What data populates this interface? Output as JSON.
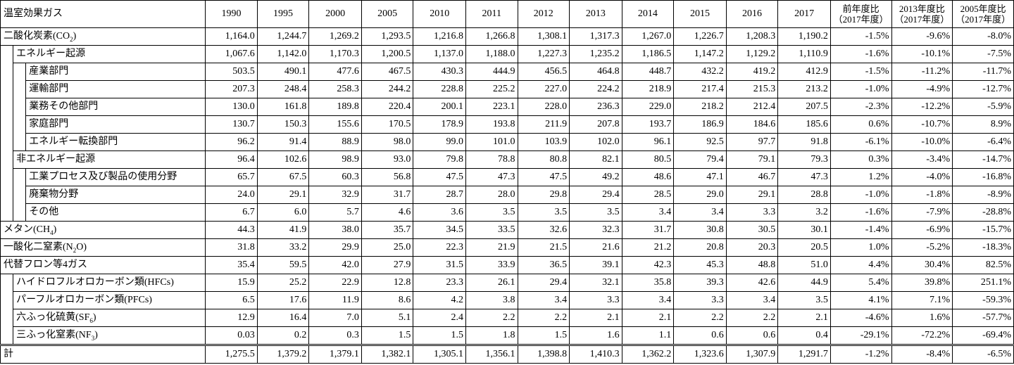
{
  "header": {
    "gas_label": "温室効果ガス",
    "years": [
      "1990",
      "1995",
      "2000",
      "2005",
      "2010",
      "2011",
      "2012",
      "2013",
      "2014",
      "2015",
      "2016",
      "2017"
    ],
    "ratio_cols": [
      {
        "line1": "前年度比",
        "line2": "（2017年度）"
      },
      {
        "line1": "2013年度比",
        "line2": "（2017年度）"
      },
      {
        "line1": "2005年度比",
        "line2": "（2017年度）"
      }
    ]
  },
  "rows": [
    {
      "label": "二酸化炭素(CO",
      "sub": "2",
      "tail": ")",
      "level": 0,
      "values": [
        "1,164.0",
        "1,244.7",
        "1,269.2",
        "1,293.5",
        "1,216.8",
        "1,266.8",
        "1,308.1",
        "1,317.3",
        "1,267.0",
        "1,226.7",
        "1,208.3",
        "1,190.2"
      ],
      "ratios": [
        "-1.5%",
        "-9.6%",
        "-8.0%"
      ]
    },
    {
      "label": "エネルギー起源",
      "level": 1,
      "values": [
        "1,067.6",
        "1,142.0",
        "1,170.3",
        "1,200.5",
        "1,137.0",
        "1,188.0",
        "1,227.3",
        "1,235.2",
        "1,186.5",
        "1,147.2",
        "1,129.2",
        "1,110.9"
      ],
      "ratios": [
        "-1.6%",
        "-10.1%",
        "-7.5%"
      ]
    },
    {
      "label": "産業部門",
      "level": 2,
      "values": [
        "503.5",
        "490.1",
        "477.6",
        "467.5",
        "430.3",
        "444.9",
        "456.5",
        "464.8",
        "448.7",
        "432.2",
        "419.2",
        "412.9"
      ],
      "ratios": [
        "-1.5%",
        "-11.2%",
        "-11.7%"
      ]
    },
    {
      "label": "運輸部門",
      "level": 2,
      "values": [
        "207.3",
        "248.4",
        "258.3",
        "244.2",
        "228.8",
        "225.2",
        "227.0",
        "224.2",
        "218.9",
        "217.4",
        "215.3",
        "213.2"
      ],
      "ratios": [
        "-1.0%",
        "-4.9%",
        "-12.7%"
      ]
    },
    {
      "label": "業務その他部門",
      "level": 2,
      "values": [
        "130.0",
        "161.8",
        "189.8",
        "220.4",
        "200.1",
        "223.1",
        "228.0",
        "236.3",
        "229.0",
        "218.2",
        "212.4",
        "207.5"
      ],
      "ratios": [
        "-2.3%",
        "-12.2%",
        "-5.9%"
      ]
    },
    {
      "label": "家庭部門",
      "level": 2,
      "values": [
        "130.7",
        "150.3",
        "155.6",
        "170.5",
        "178.9",
        "193.8",
        "211.9",
        "207.8",
        "193.7",
        "186.9",
        "184.6",
        "185.6"
      ],
      "ratios": [
        "0.6%",
        "-10.7%",
        "8.9%"
      ]
    },
    {
      "label": "エネルギー転換部門",
      "level": 2,
      "values": [
        "96.2",
        "91.4",
        "88.9",
        "98.0",
        "99.0",
        "101.0",
        "103.9",
        "102.0",
        "96.1",
        "92.5",
        "97.7",
        "91.8"
      ],
      "ratios": [
        "-6.1%",
        "-10.0%",
        "-6.4%"
      ]
    },
    {
      "label": "非エネルギー起源",
      "level": 1,
      "values": [
        "96.4",
        "102.6",
        "98.9",
        "93.0",
        "79.8",
        "78.8",
        "80.8",
        "82.1",
        "80.5",
        "79.4",
        "79.1",
        "79.3"
      ],
      "ratios": [
        "0.3%",
        "-3.4%",
        "-14.7%"
      ]
    },
    {
      "label": "工業プロセス及び製品の使用分野",
      "level": 2,
      "values": [
        "65.7",
        "67.5",
        "60.3",
        "56.8",
        "47.5",
        "47.3",
        "47.5",
        "49.2",
        "48.6",
        "47.1",
        "46.7",
        "47.3"
      ],
      "ratios": [
        "1.2%",
        "-4.0%",
        "-16.8%"
      ]
    },
    {
      "label": "廃棄物分野",
      "level": 2,
      "values": [
        "24.0",
        "29.1",
        "32.9",
        "31.7",
        "28.7",
        "28.0",
        "29.8",
        "29.4",
        "28.5",
        "29.0",
        "29.1",
        "28.8"
      ],
      "ratios": [
        "-1.0%",
        "-1.8%",
        "-8.9%"
      ]
    },
    {
      "label": "その他",
      "level": 2,
      "values": [
        "6.7",
        "6.0",
        "5.7",
        "4.6",
        "3.6",
        "3.5",
        "3.5",
        "3.5",
        "3.4",
        "3.4",
        "3.3",
        "3.2"
      ],
      "ratios": [
        "-1.6%",
        "-7.9%",
        "-28.8%"
      ]
    },
    {
      "label": "メタン(CH",
      "sub": "4",
      "tail": ")",
      "level": 0,
      "values": [
        "44.3",
        "41.9",
        "38.0",
        "35.7",
        "34.5",
        "33.5",
        "32.6",
        "32.3",
        "31.7",
        "30.8",
        "30.5",
        "30.1"
      ],
      "ratios": [
        "-1.4%",
        "-6.9%",
        "-15.7%"
      ]
    },
    {
      "label": "一酸化二窒素(N",
      "sub": "2",
      "tail": "O)",
      "level": 0,
      "values": [
        "31.8",
        "33.2",
        "29.9",
        "25.0",
        "22.3",
        "21.9",
        "21.5",
        "21.6",
        "21.2",
        "20.8",
        "20.3",
        "20.5"
      ],
      "ratios": [
        "1.0%",
        "-5.2%",
        "-18.3%"
      ]
    },
    {
      "label": "代替フロン等4ガス",
      "level": 0,
      "values": [
        "35.4",
        "59.5",
        "42.0",
        "27.9",
        "31.5",
        "33.9",
        "36.5",
        "39.1",
        "42.3",
        "45.3",
        "48.8",
        "51.0"
      ],
      "ratios": [
        "4.4%",
        "30.4%",
        "82.5%"
      ]
    },
    {
      "label": "ハイドロフルオロカーボン類(HFCs)",
      "level": 1,
      "values": [
        "15.9",
        "25.2",
        "22.9",
        "12.8",
        "23.3",
        "26.1",
        "29.4",
        "32.1",
        "35.8",
        "39.3",
        "42.6",
        "44.9"
      ],
      "ratios": [
        "5.4%",
        "39.8%",
        "251.1%"
      ]
    },
    {
      "label": "パーフルオロカーボン類(PFCs)",
      "level": 1,
      "values": [
        "6.5",
        "17.6",
        "11.9",
        "8.6",
        "4.2",
        "3.8",
        "3.4",
        "3.3",
        "3.4",
        "3.3",
        "3.4",
        "3.5"
      ],
      "ratios": [
        "4.1%",
        "7.1%",
        "-59.3%"
      ]
    },
    {
      "label": "六ふっ化硫黄(SF",
      "sub": "6",
      "tail": ")",
      "level": 1,
      "values": [
        "12.9",
        "16.4",
        "7.0",
        "5.1",
        "2.4",
        "2.2",
        "2.2",
        "2.1",
        "2.1",
        "2.2",
        "2.2",
        "2.1"
      ],
      "ratios": [
        "-4.6%",
        "1.6%",
        "-57.7%"
      ]
    },
    {
      "label": "三ふっ化窒素(NF",
      "sub": "3",
      "tail": ")",
      "level": 1,
      "values": [
        "0.03",
        "0.2",
        "0.3",
        "1.5",
        "1.5",
        "1.8",
        "1.5",
        "1.6",
        "1.1",
        "0.6",
        "0.6",
        "0.4"
      ],
      "ratios": [
        "-29.1%",
        "-72.2%",
        "-69.4%"
      ]
    }
  ],
  "total": {
    "label": "計",
    "values": [
      "1,275.5",
      "1,379.2",
      "1,379.1",
      "1,382.1",
      "1,305.1",
      "1,356.1",
      "1,398.8",
      "1,410.3",
      "1,362.2",
      "1,323.6",
      "1,307.9",
      "1,291.7"
    ],
    "ratios": [
      "-1.2%",
      "-8.4%",
      "-6.5%"
    ]
  }
}
